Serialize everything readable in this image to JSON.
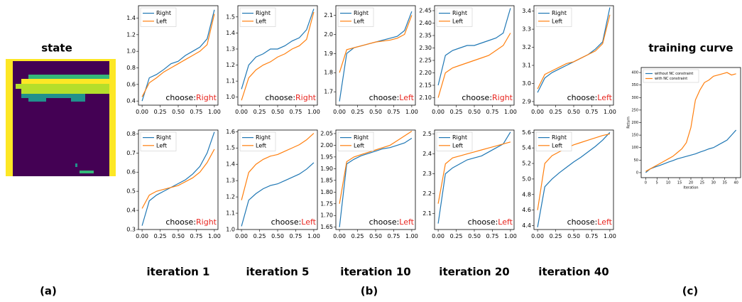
{
  "state_title": "state",
  "iteration_labels": [
    "iteration 1",
    "iteration 5",
    "iteration 10",
    "iteration 20",
    "iteration 40"
  ],
  "panel_labels": [
    "(a)",
    "(b)",
    "(c)"
  ],
  "chart_data": [
    {
      "type": "line",
      "x": [
        0,
        0.1,
        0.2,
        0.3,
        0.4,
        0.5,
        0.6,
        0.7,
        0.8,
        0.9,
        1.0
      ],
      "xlim": [
        -0.05,
        1.05
      ],
      "xticks": [
        {
          "value": 0,
          "label": "0.00"
        },
        {
          "value": 0.25,
          "label": "0.25"
        },
        {
          "value": 0.5,
          "label": "0.50"
        },
        {
          "value": 0.75,
          "label": "0.75"
        },
        {
          "value": 1,
          "label": "1.00"
        }
      ],
      "ylim": [
        0.35,
        1.55
      ],
      "yticks": [
        0.4,
        0.6,
        0.8,
        {
          "value": 1,
          "label": "1.0"
        },
        1.2,
        1.4
      ],
      "legend": "upper left",
      "annotation": "choose:",
      "choice": "Right",
      "series": [
        {
          "name": "Right",
          "color": "#1f77b4",
          "values": [
            0.4,
            0.68,
            0.72,
            0.78,
            0.85,
            0.88,
            0.95,
            1.0,
            1.05,
            1.15,
            1.5
          ]
        },
        {
          "name": "Left",
          "color": "#ff7f0e",
          "values": [
            0.45,
            0.62,
            0.68,
            0.75,
            0.8,
            0.85,
            0.9,
            0.95,
            1.0,
            1.08,
            1.45
          ]
        }
      ]
    },
    {
      "type": "line",
      "x": [
        0,
        0.1,
        0.2,
        0.3,
        0.4,
        0.5,
        0.6,
        0.7,
        0.8,
        0.9,
        1.0
      ],
      "xlim": [
        -0.05,
        1.05
      ],
      "xticks": [
        {
          "value": 0,
          "label": "0.00"
        },
        {
          "value": 0.25,
          "label": "0.25"
        },
        {
          "value": 0.5,
          "label": "0.50"
        },
        {
          "value": 0.75,
          "label": "0.75"
        },
        {
          "value": 1,
          "label": "1.00"
        }
      ],
      "ylim": [
        0.95,
        1.57
      ],
      "yticks": [
        {
          "value": 1,
          "label": "1.0"
        },
        1.1,
        1.2,
        1.3,
        1.4,
        1.5
      ],
      "legend": "upper left",
      "annotation": "choose:",
      "choice": "Right",
      "series": [
        {
          "name": "Right",
          "color": "#1f77b4",
          "values": [
            1.05,
            1.2,
            1.25,
            1.27,
            1.3,
            1.3,
            1.32,
            1.35,
            1.37,
            1.42,
            1.55
          ]
        },
        {
          "name": "Left",
          "color": "#ff7f0e",
          "values": [
            0.98,
            1.12,
            1.17,
            1.2,
            1.22,
            1.25,
            1.27,
            1.3,
            1.32,
            1.36,
            1.53
          ]
        }
      ]
    },
    {
      "type": "line",
      "x": [
        0,
        0.1,
        0.2,
        0.3,
        0.4,
        0.5,
        0.6,
        0.7,
        0.8,
        0.9,
        1.0
      ],
      "xlim": [
        -0.05,
        1.05
      ],
      "xticks": [
        {
          "value": 0,
          "label": "0.00"
        },
        {
          "value": 0.25,
          "label": "0.25"
        },
        {
          "value": 0.5,
          "label": "0.50"
        },
        {
          "value": 0.75,
          "label": "0.75"
        },
        {
          "value": 1,
          "label": "1.00"
        }
      ],
      "ylim": [
        1.63,
        2.15
      ],
      "yticks": [
        1.7,
        1.8,
        1.9,
        {
          "value": 2,
          "label": "2.0"
        },
        2.1
      ],
      "legend": "upper left",
      "annotation": "choose:",
      "choice": "Left",
      "series": [
        {
          "name": "Right",
          "color": "#1f77b4",
          "values": [
            1.65,
            1.9,
            1.93,
            1.94,
            1.95,
            1.96,
            1.97,
            1.98,
            1.99,
            2.02,
            2.12
          ]
        },
        {
          "name": "Left",
          "color": "#ff7f0e",
          "values": [
            1.8,
            1.92,
            1.93,
            1.94,
            1.95,
            1.96,
            1.965,
            1.97,
            1.98,
            2.0,
            2.1
          ]
        }
      ]
    },
    {
      "type": "line",
      "x": [
        0,
        0.1,
        0.2,
        0.3,
        0.4,
        0.5,
        0.6,
        0.7,
        0.8,
        0.9,
        1.0
      ],
      "xlim": [
        -0.05,
        1.05
      ],
      "xticks": [
        {
          "value": 0,
          "label": "0.00"
        },
        {
          "value": 0.25,
          "label": "0.25"
        },
        {
          "value": 0.5,
          "label": "0.50"
        },
        {
          "value": 0.75,
          "label": "0.75"
        },
        {
          "value": 1,
          "label": "1.00"
        }
      ],
      "ylim": [
        2.07,
        2.47
      ],
      "yticks": [
        {
          "value": 2.1,
          "label": "2.10"
        },
        2.15,
        {
          "value": 2.2,
          "label": "2.20"
        },
        2.25,
        {
          "value": 2.3,
          "label": "2.30"
        },
        2.35,
        {
          "value": 2.4,
          "label": "2.40"
        },
        2.45
      ],
      "legend": "upper left",
      "annotation": "choose:",
      "choice": "Right",
      "series": [
        {
          "name": "Right",
          "color": "#1f77b4",
          "values": [
            2.15,
            2.27,
            2.29,
            2.3,
            2.31,
            2.31,
            2.32,
            2.33,
            2.34,
            2.36,
            2.46
          ]
        },
        {
          "name": "Left",
          "color": "#ff7f0e",
          "values": [
            2.1,
            2.2,
            2.22,
            2.23,
            2.24,
            2.25,
            2.26,
            2.27,
            2.29,
            2.31,
            2.36
          ]
        }
      ]
    },
    {
      "type": "line",
      "x": [
        0,
        0.1,
        0.2,
        0.3,
        0.4,
        0.5,
        0.6,
        0.7,
        0.8,
        0.9,
        1.0
      ],
      "xlim": [
        -0.05,
        1.05
      ],
      "xticks": [
        {
          "value": 0,
          "label": "0.00"
        },
        {
          "value": 0.25,
          "label": "0.25"
        },
        {
          "value": 0.5,
          "label": "0.50"
        },
        {
          "value": 0.75,
          "label": "0.75"
        },
        {
          "value": 1,
          "label": "1.00"
        }
      ],
      "ylim": [
        2.88,
        3.43
      ],
      "yticks": [
        2.9,
        {
          "value": 3,
          "label": "3.0"
        },
        3.1,
        3.2,
        3.3,
        3.4
      ],
      "legend": "upper left",
      "annotation": "choose:",
      "choice": "Left",
      "series": [
        {
          "name": "Right",
          "color": "#1f77b4",
          "values": [
            2.95,
            3.03,
            3.06,
            3.08,
            3.1,
            3.12,
            3.14,
            3.16,
            3.19,
            3.23,
            3.42
          ]
        },
        {
          "name": "Left",
          "color": "#ff7f0e",
          "values": [
            2.97,
            3.05,
            3.07,
            3.09,
            3.11,
            3.12,
            3.14,
            3.16,
            3.18,
            3.22,
            3.38
          ]
        }
      ]
    },
    {
      "type": "line",
      "x": [
        0,
        0.1,
        0.2,
        0.3,
        0.4,
        0.5,
        0.6,
        0.7,
        0.8,
        0.9,
        1.0
      ],
      "xlim": [
        -0.05,
        1.05
      ],
      "xticks": [
        {
          "value": 0,
          "label": "0.00"
        },
        {
          "value": 0.25,
          "label": "0.25"
        },
        {
          "value": 0.5,
          "label": "0.50"
        },
        {
          "value": 0.75,
          "label": "0.75"
        },
        {
          "value": 1,
          "label": "1.00"
        }
      ],
      "ylim": [
        0.3,
        0.82
      ],
      "yticks": [
        0.3,
        0.4,
        0.5,
        0.6,
        0.7,
        0.8
      ],
      "legend": "upper left",
      "annotation": "choose:",
      "choice": "Right",
      "series": [
        {
          "name": "Right",
          "color": "#1f77b4",
          "values": [
            0.32,
            0.45,
            0.48,
            0.5,
            0.52,
            0.54,
            0.56,
            0.59,
            0.63,
            0.7,
            0.81
          ]
        },
        {
          "name": "Left",
          "color": "#ff7f0e",
          "values": [
            0.41,
            0.48,
            0.5,
            0.51,
            0.52,
            0.53,
            0.55,
            0.57,
            0.6,
            0.65,
            0.72
          ]
        }
      ]
    },
    {
      "type": "line",
      "x": [
        0,
        0.1,
        0.2,
        0.3,
        0.4,
        0.5,
        0.6,
        0.7,
        0.8,
        0.9,
        1.0
      ],
      "xlim": [
        -0.05,
        1.05
      ],
      "xticks": [
        {
          "value": 0,
          "label": "0.00"
        },
        {
          "value": 0.25,
          "label": "0.25"
        },
        {
          "value": 0.5,
          "label": "0.50"
        },
        {
          "value": 0.75,
          "label": "0.75"
        },
        {
          "value": 1,
          "label": "1.00"
        }
      ],
      "ylim": [
        1.0,
        1.61
      ],
      "yticks": [
        {
          "value": 1,
          "label": "1.0"
        },
        1.1,
        1.2,
        1.3,
        1.4,
        1.5,
        1.6
      ],
      "legend": "upper left",
      "annotation": "choose:",
      "choice": "Left",
      "series": [
        {
          "name": "Right",
          "color": "#1f77b4",
          "values": [
            1.02,
            1.18,
            1.22,
            1.25,
            1.27,
            1.28,
            1.3,
            1.32,
            1.34,
            1.37,
            1.41
          ]
        },
        {
          "name": "Left",
          "color": "#ff7f0e",
          "values": [
            1.18,
            1.35,
            1.4,
            1.43,
            1.45,
            1.46,
            1.48,
            1.5,
            1.52,
            1.55,
            1.59
          ]
        }
      ]
    },
    {
      "type": "line",
      "x": [
        0,
        0.1,
        0.2,
        0.3,
        0.4,
        0.5,
        0.6,
        0.7,
        0.8,
        0.9,
        1.0
      ],
      "xlim": [
        -0.05,
        1.05
      ],
      "xticks": [
        {
          "value": 0,
          "label": "0.00"
        },
        {
          "value": 0.25,
          "label": "0.25"
        },
        {
          "value": 0.5,
          "label": "0.50"
        },
        {
          "value": 0.75,
          "label": "0.75"
        },
        {
          "value": 1,
          "label": "1.00"
        }
      ],
      "ylim": [
        1.64,
        2.065
      ],
      "yticks": [
        1.65,
        {
          "value": 1.7,
          "label": "1.70"
        },
        1.75,
        {
          "value": 1.8,
          "label": "1.80"
        },
        1.85,
        {
          "value": 1.9,
          "label": "1.90"
        },
        1.95,
        {
          "value": 2,
          "label": "2.00"
        },
        2.05
      ],
      "legend": "upper left",
      "annotation": "choose:",
      "choice": "Left",
      "series": [
        {
          "name": "Right",
          "color": "#1f77b4",
          "values": [
            1.65,
            1.92,
            1.94,
            1.955,
            1.965,
            1.975,
            1.985,
            1.99,
            2.0,
            2.01,
            2.03
          ]
        },
        {
          "name": "Left",
          "color": "#ff7f0e",
          "values": [
            1.75,
            1.93,
            1.95,
            1.96,
            1.97,
            1.98,
            1.99,
            2.0,
            2.02,
            2.04,
            2.06
          ]
        }
      ]
    },
    {
      "type": "line",
      "x": [
        0,
        0.1,
        0.2,
        0.3,
        0.4,
        0.5,
        0.6,
        0.7,
        0.8,
        0.9,
        1.0
      ],
      "xlim": [
        -0.05,
        1.05
      ],
      "xticks": [
        {
          "value": 0,
          "label": "0.00"
        },
        {
          "value": 0.25,
          "label": "0.25"
        },
        {
          "value": 0.5,
          "label": "0.50"
        },
        {
          "value": 0.75,
          "label": "0.75"
        },
        {
          "value": 1,
          "label": "1.00"
        }
      ],
      "ylim": [
        2.02,
        2.52
      ],
      "yticks": [
        2.1,
        2.2,
        2.3,
        2.4,
        2.5
      ],
      "legend": "upper left",
      "annotation": "choose:",
      "choice": "Left",
      "series": [
        {
          "name": "Right",
          "color": "#1f77b4",
          "values": [
            2.05,
            2.3,
            2.33,
            2.35,
            2.37,
            2.38,
            2.39,
            2.41,
            2.43,
            2.45,
            2.51
          ]
        },
        {
          "name": "Left",
          "color": "#ff7f0e",
          "values": [
            2.15,
            2.35,
            2.38,
            2.39,
            2.4,
            2.41,
            2.42,
            2.43,
            2.44,
            2.45,
            2.46
          ]
        }
      ]
    },
    {
      "type": "line",
      "x": [
        0,
        0.1,
        0.2,
        0.3,
        0.4,
        0.5,
        0.6,
        0.7,
        0.8,
        0.9,
        1.0
      ],
      "xlim": [
        -0.05,
        1.05
      ],
      "xticks": [
        {
          "value": 0,
          "label": "0.00"
        },
        {
          "value": 0.25,
          "label": "0.25"
        },
        {
          "value": 0.5,
          "label": "0.50"
        },
        {
          "value": 0.75,
          "label": "0.75"
        },
        {
          "value": 1,
          "label": "1.00"
        }
      ],
      "ylim": [
        4.35,
        5.63
      ],
      "yticks": [
        4.4,
        4.6,
        4.8,
        {
          "value": 5,
          "label": "5.0"
        },
        5.2,
        5.4,
        5.6
      ],
      "legend": "upper left",
      "annotation": "choose:",
      "choice": "Left",
      "series": [
        {
          "name": "Right",
          "color": "#1f77b4",
          "values": [
            4.38,
            4.9,
            5.0,
            5.08,
            5.15,
            5.22,
            5.28,
            5.35,
            5.42,
            5.5,
            5.6
          ]
        },
        {
          "name": "Left",
          "color": "#ff7f0e",
          "values": [
            4.6,
            5.2,
            5.3,
            5.35,
            5.4,
            5.44,
            5.47,
            5.5,
            5.53,
            5.56,
            5.58
          ]
        }
      ]
    },
    {
      "type": "line",
      "title": "training curve",
      "xlabel": "Iteration",
      "ylabel": "Return",
      "x": [
        0,
        2,
        4,
        6,
        8,
        10,
        12,
        14,
        16,
        18,
        20,
        22,
        24,
        26,
        28,
        30,
        32,
        34,
        36,
        38,
        40
      ],
      "xlim": [
        -2,
        42
      ],
      "xticks": [
        0,
        5,
        10,
        15,
        20,
        25,
        30,
        35,
        40
      ],
      "ylim": [
        -20,
        420
      ],
      "yticks": [
        0,
        50,
        100,
        150,
        200,
        250,
        300,
        350,
        400
      ],
      "legend": "upper left",
      "series": [
        {
          "name": "without NC constraint",
          "color": "#1f77b4",
          "values": [
            0,
            15,
            22,
            28,
            35,
            42,
            48,
            55,
            60,
            65,
            70,
            75,
            82,
            88,
            95,
            100,
            110,
            120,
            130,
            150,
            170
          ]
        },
        {
          "name": "with NC constraint",
          "color": "#ff7f0e",
          "values": [
            5,
            15,
            25,
            35,
            45,
            55,
            65,
            80,
            95,
            120,
            180,
            290,
            330,
            360,
            370,
            385,
            390,
            395,
            400,
            390,
            395
          ]
        }
      ]
    }
  ]
}
